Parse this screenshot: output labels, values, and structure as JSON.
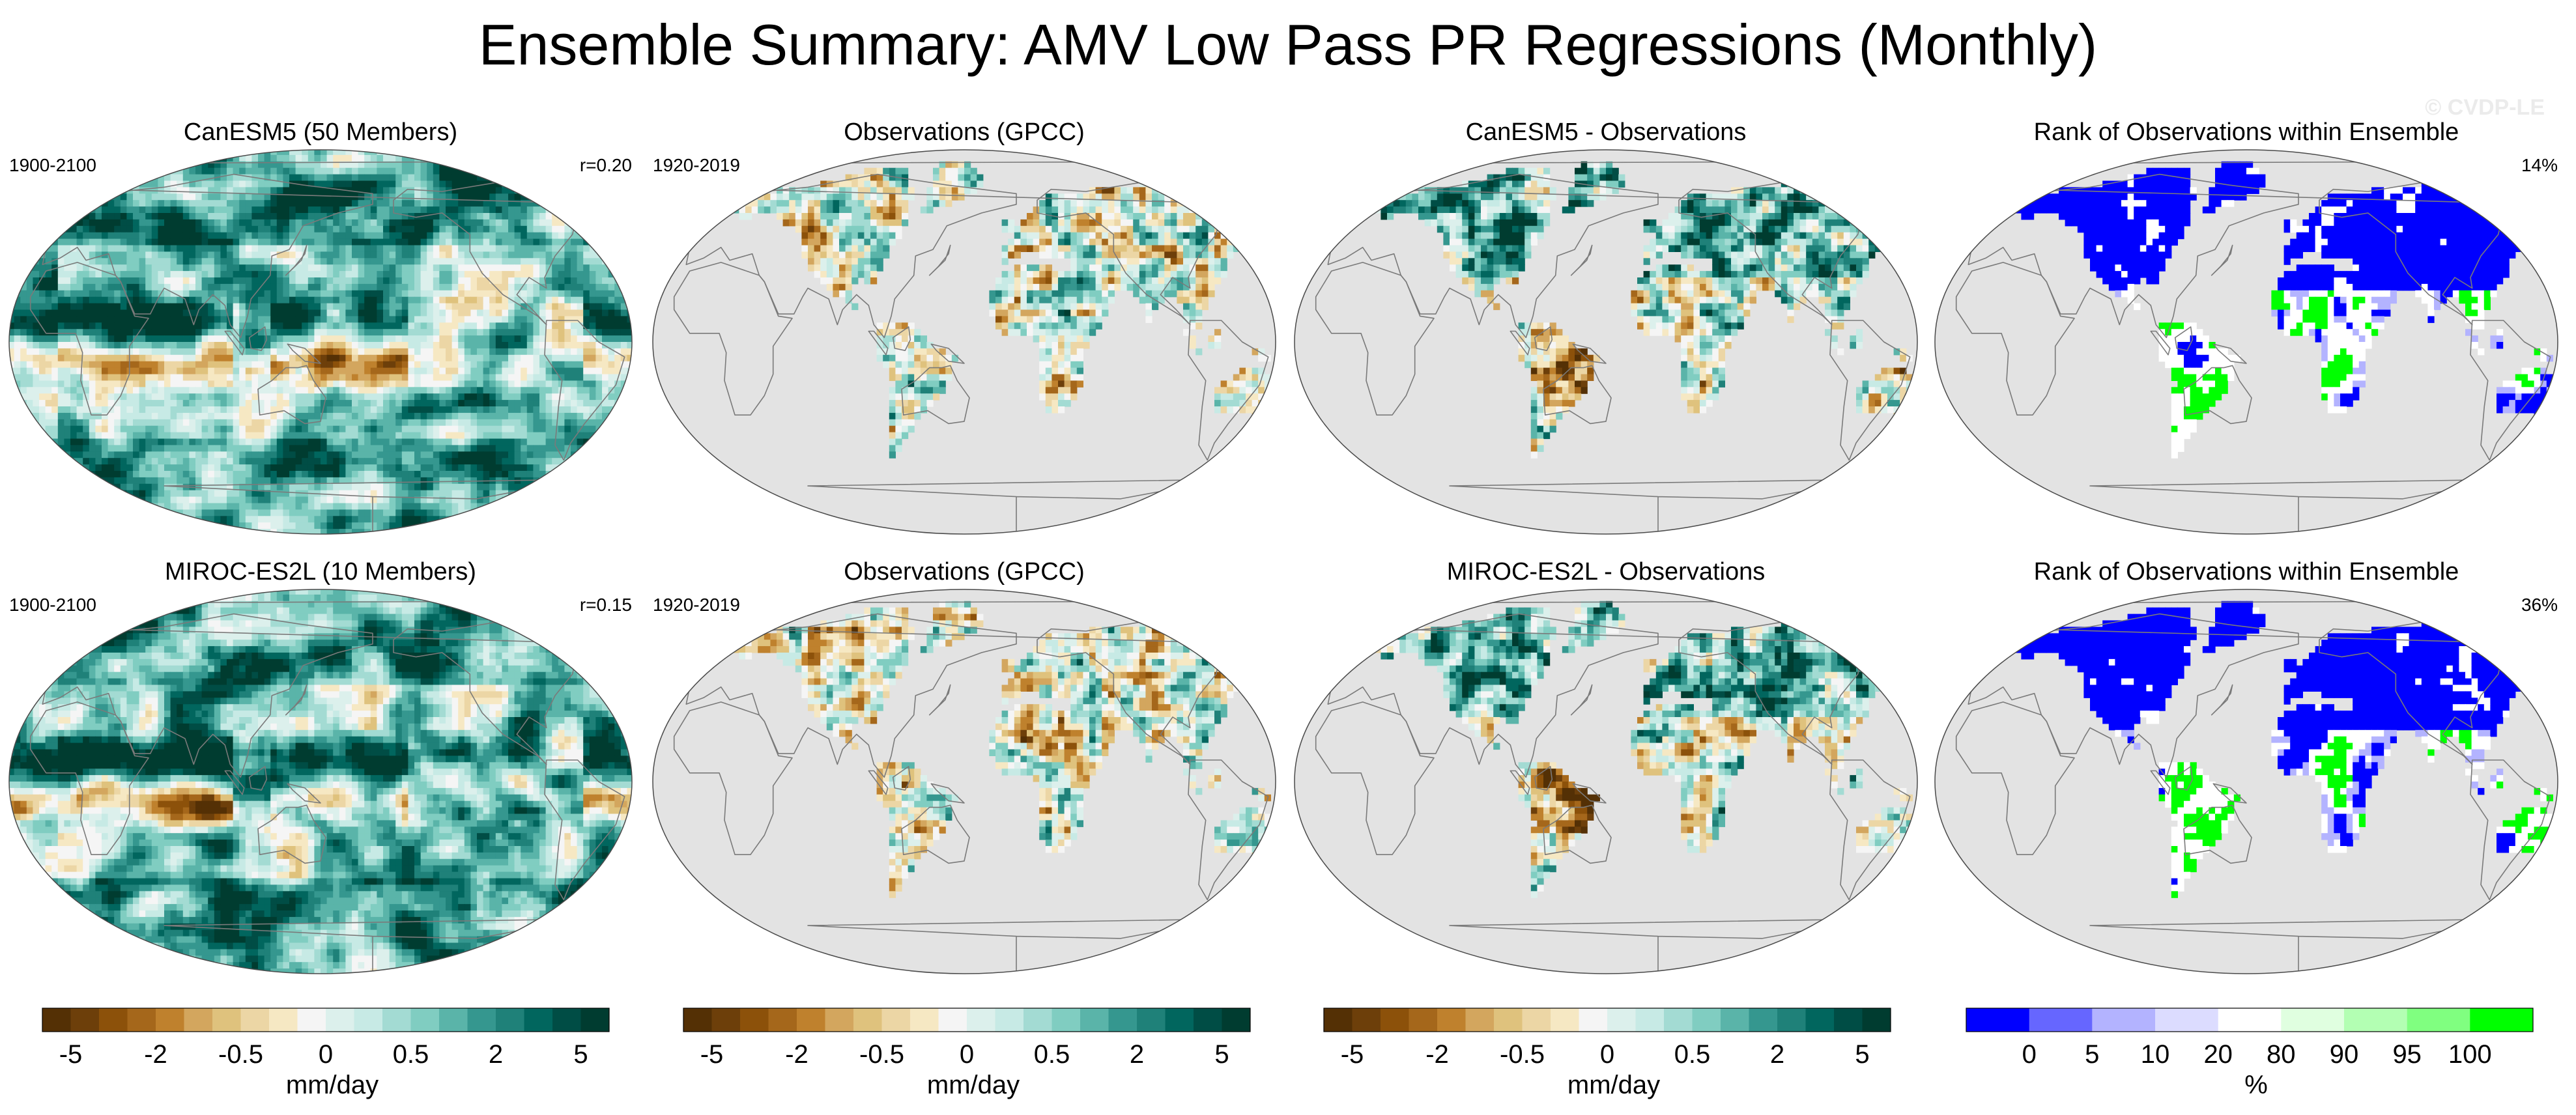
{
  "title": "Ensemble Summary: AMV Low Pass PR Regressions (Monthly)",
  "watermark": "© CVDP-LE",
  "colors": {
    "diverging": [
      "#543005",
      "#6d3f0a",
      "#8c510a",
      "#a5671b",
      "#bf812d",
      "#d3a65e",
      "#dfc27d",
      "#ecd6a5",
      "#f6e8c3",
      "#f5f5f5",
      "#dcf0ec",
      "#c7eae5",
      "#a3dbd3",
      "#80cdc1",
      "#5ab4a9",
      "#35978f",
      "#1f8179",
      "#01665e",
      "#004d45",
      "#003c30"
    ],
    "rank": [
      "#0000ff",
      "#6666ff",
      "#b3b3ff",
      "#dcdcff",
      "#ffffff",
      "#e0ffe0",
      "#b3ffb3",
      "#80ff80",
      "#00ff00"
    ],
    "land_gray": "#e3e3e3",
    "coast": "#7a7a7a"
  },
  "chart_data": [
    {
      "type": "heatmap",
      "row": 1,
      "col": 1,
      "title": "CanESM5 (50 Members)",
      "left_label": "1900-2100",
      "right_label": "r=0.20",
      "field": "model",
      "units": "mm/day",
      "colormap": "diverging"
    },
    {
      "type": "heatmap",
      "row": 1,
      "col": 2,
      "title": "Observations (GPCC)",
      "left_label": "1920-2019",
      "right_label": "",
      "field": "obs",
      "units": "mm/day",
      "colormap": "diverging"
    },
    {
      "type": "heatmap",
      "row": 1,
      "col": 3,
      "title": "CanESM5 - Observations",
      "left_label": "",
      "right_label": "",
      "field": "diff",
      "units": "mm/day",
      "colormap": "diverging"
    },
    {
      "type": "heatmap",
      "row": 1,
      "col": 4,
      "title": "Rank of Observations within Ensemble",
      "left_label": "",
      "right_label": "14%",
      "field": "rank",
      "units": "%",
      "colormap": "rank"
    },
    {
      "type": "heatmap",
      "row": 2,
      "col": 1,
      "title": "MIROC-ES2L (10 Members)",
      "left_label": "1900-2100",
      "right_label": "r=0.15",
      "field": "model",
      "units": "mm/day",
      "colormap": "diverging"
    },
    {
      "type": "heatmap",
      "row": 2,
      "col": 2,
      "title": "Observations (GPCC)",
      "left_label": "1920-2019",
      "right_label": "",
      "field": "obs",
      "units": "mm/day",
      "colormap": "diverging"
    },
    {
      "type": "heatmap",
      "row": 2,
      "col": 3,
      "title": "MIROC-ES2L - Observations",
      "left_label": "",
      "right_label": "",
      "field": "diff",
      "units": "mm/day",
      "colormap": "diverging"
    },
    {
      "type": "heatmap",
      "row": 2,
      "col": 4,
      "title": "Rank of Observations within Ensemble",
      "left_label": "",
      "right_label": "36%",
      "field": "rank",
      "units": "%",
      "colormap": "rank"
    }
  ],
  "colorbars": [
    {
      "kind": "diverging",
      "label": "mm/day",
      "ticks": [
        "-5",
        "-2",
        "-0.5",
        "0",
        "0.5",
        "2",
        "5"
      ],
      "tick_bounds": [
        1,
        4,
        7,
        10,
        13,
        16,
        19
      ],
      "n": 20
    },
    {
      "kind": "diverging",
      "label": "mm/day",
      "ticks": [
        "-5",
        "-2",
        "-0.5",
        "0",
        "0.5",
        "2",
        "5"
      ],
      "tick_bounds": [
        1,
        4,
        7,
        10,
        13,
        16,
        19
      ],
      "n": 20
    },
    {
      "kind": "diverging",
      "label": "mm/day",
      "ticks": [
        "-5",
        "-2",
        "-0.5",
        "0",
        "0.5",
        "2",
        "5"
      ],
      "tick_bounds": [
        1,
        4,
        7,
        10,
        13,
        16,
        19
      ],
      "n": 20
    },
    {
      "kind": "rank",
      "label": "%",
      "ticks": [
        "0",
        "5",
        "10",
        "20",
        "80",
        "90",
        "95",
        "100"
      ],
      "tick_bounds": [
        1,
        2,
        3,
        4,
        5,
        6,
        7,
        8
      ],
      "n": 9
    }
  ]
}
